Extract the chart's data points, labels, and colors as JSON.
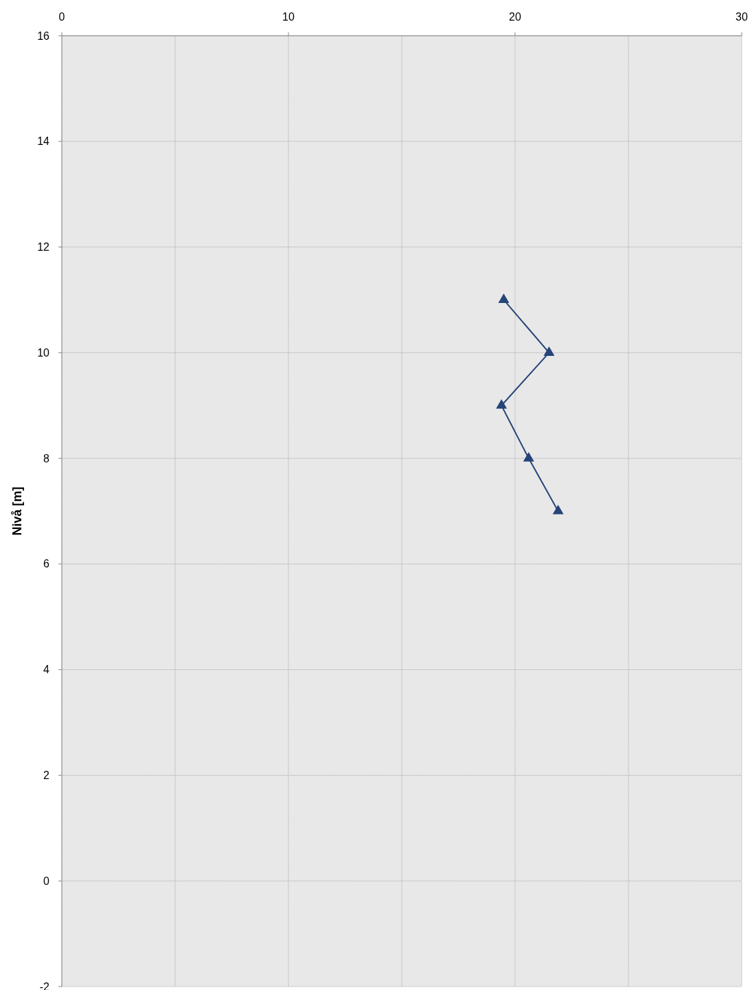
{
  "chart_data": {
    "type": "line",
    "ylabel": "Nivå [m]",
    "x": [
      19.5,
      21.5,
      19.4,
      20.6,
      21.9
    ],
    "series": [
      {
        "color": "#264478",
        "values": [
          11,
          10,
          9,
          8,
          7
        ]
      }
    ],
    "xlim": [
      0,
      30
    ],
    "xticks": [
      0,
      {
        "value": 5,
        "label": null
      },
      10,
      {
        "value": 15,
        "label": null
      },
      20,
      {
        "value": 25,
        "label": null
      },
      30
    ],
    "ylim": [
      -2,
      16
    ],
    "yticks": [
      -2,
      0,
      2,
      4,
      6,
      8,
      10,
      12,
      14,
      16
    ],
    "grid": true,
    "marker": "triangle",
    "line_style": "solid"
  }
}
